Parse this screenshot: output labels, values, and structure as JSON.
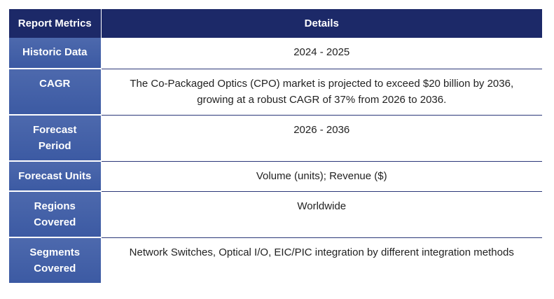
{
  "header": {
    "metric": "Report Metrics",
    "detail": "Details"
  },
  "rows": [
    {
      "metric": "Historic Data",
      "detail": "2024 - 2025"
    },
    {
      "metric": "CAGR",
      "detail": "The Co-Packaged Optics (CPO) market is projected to exceed $20 billion by 2036, growing at a robust CAGR of 37% from 2026 to 2036."
    },
    {
      "metric": "Forecast Period",
      "detail": "2026 - 2036"
    },
    {
      "metric": "Forecast Units",
      "detail": "Volume (units); Revenue ($)"
    },
    {
      "metric": "Regions Covered",
      "detail": "Worldwide"
    },
    {
      "metric": "Segments Covered",
      "detail": "Network Switches, Optical I/O, EIC/PIC integration by different integration methods"
    }
  ],
  "colors": {
    "header_bg": "#1c2968",
    "metric_bg": "#4563a8",
    "row_border": "#2b3778"
  }
}
